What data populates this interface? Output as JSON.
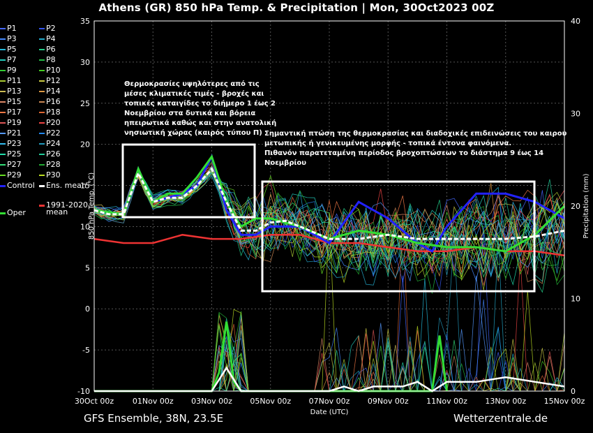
{
  "chart_data": {
    "type": "line",
    "title": "Athens  (GR)  850 hPa Temp. & Precipitation | Mon, 30Oct2023 00Z",
    "xlabel": "Date (UTC)",
    "ylabel": "850 hPa Temp. (°C)",
    "y2label": "Precipitation (mm)",
    "ylim": [
      -10,
      35
    ],
    "y2lim": [
      0,
      40
    ],
    "yticks": [
      "35",
      "30",
      "25",
      "20",
      "15",
      "10",
      "5",
      "0",
      "-5",
      "-10"
    ],
    "y2ticks": [
      "40",
      "30",
      "20",
      "10",
      "0"
    ],
    "xticks": [
      "30Oct 00z",
      "01Nov 00z",
      "03Nov 00z",
      "05Nov 00z",
      "07Nov 00z",
      "09Nov 00z",
      "11Nov 00z",
      "13Nov 00z",
      "15Nov 00z"
    ],
    "x_hours_range": [
      0,
      384
    ],
    "grid": true,
    "legend_position": "left",
    "series": [
      {
        "name": "Control",
        "color": "#2222ff",
        "values_hours": [
          0,
          24,
          36,
          48,
          60,
          72,
          84,
          96,
          108,
          120,
          132,
          144,
          168,
          192,
          216,
          240,
          264,
          276,
          288,
          312,
          336,
          360,
          384
        ],
        "values": [
          12,
          11.5,
          17,
          13,
          13.5,
          14,
          15,
          18.5,
          12,
          9,
          9,
          10,
          10,
          8,
          13,
          11,
          8,
          7,
          10,
          14,
          14,
          13,
          11
        ]
      },
      {
        "name": "Ens. mean",
        "color": "#ffffff",
        "values_hours": [
          0,
          12,
          24,
          36,
          48,
          60,
          72,
          84,
          96,
          108,
          120,
          132,
          144,
          156,
          168,
          192,
          216,
          240,
          264,
          288,
          312,
          336,
          360,
          384
        ],
        "values": [
          12,
          11.5,
          11.5,
          16.5,
          13,
          13.5,
          13.5,
          15,
          17,
          13,
          9.5,
          9.5,
          10.5,
          10.7,
          10,
          8.5,
          8.5,
          9,
          8.5,
          8.5,
          8.5,
          8.5,
          8.8,
          9.5
        ]
      },
      {
        "name": "Oper",
        "color": "#33dd33",
        "values_hours": [
          0,
          24,
          36,
          48,
          60,
          72,
          84,
          96,
          108,
          120,
          132,
          144,
          168,
          192,
          216,
          240,
          264,
          288,
          312,
          336,
          360,
          384
        ],
        "values": [
          12,
          11.5,
          17,
          13,
          14,
          14,
          16,
          18.5,
          13,
          10,
          11,
          11,
          10,
          8.5,
          9.5,
          9,
          8,
          7.5,
          7.5,
          7,
          9,
          12.5
        ]
      },
      {
        "name": "1991-2020 mean",
        "color": "#ee3333",
        "values_hours": [
          0,
          24,
          48,
          72,
          96,
          120,
          144,
          168,
          192,
          216,
          240,
          264,
          288,
          312,
          336,
          360,
          384
        ],
        "values": [
          8.5,
          8,
          8,
          9,
          8.5,
          8.5,
          9,
          9,
          8,
          8,
          7.5,
          7,
          7,
          7.5,
          7,
          7,
          6.5
        ]
      },
      {
        "name": "Oper precipitation",
        "color": "#33dd33",
        "axis": "precipitation",
        "values_hours": [
          0,
          96,
          102,
          108,
          114,
          120,
          276,
          282,
          288
        ],
        "values": [
          0,
          0,
          2,
          7.5,
          1,
          0,
          0,
          6,
          0
        ]
      },
      {
        "name": "Ens. mean precipitation",
        "color": "#ffffff",
        "axis": "precipitation",
        "values_hours": [
          0,
          96,
          108,
          120,
          192,
          204,
          216,
          228,
          252,
          264,
          276,
          288,
          312,
          336,
          384
        ],
        "values": [
          0,
          0,
          2.5,
          0,
          0,
          0.5,
          0,
          0.5,
          0.5,
          1,
          0,
          1,
          1,
          1.5,
          0.5
        ]
      }
    ],
    "annotations": [
      {
        "text_lines": [
          "Θερμοκρασίες υψηλότερες από τις",
          "μέσες κλιματικές τιμές - βροχές και",
          "τοπικές καταιγίδες το διήμερο 1 έως 2",
          "Νοεμβρίου στα δυτικά και βόρεια",
          "ηπειρωτικά καθώς και στην ανατολική",
          "νησιωτική χώρας (καιρός τύπου Π)"
        ]
      },
      {
        "text_lines": [
          "Σημαντική πτώση της θερμοκρασίας και διαδοχικές επιδεινώσεις του καιρου",
          "μετωπικής ή γενικευμένης μορφής - τοπικά έντονα φαινόμενα.",
          "Πιθανόν παρατεταμένη περίοδος βροχοπτώσεων το διάστημα 9 έως 14",
          "Νοεμβρίου"
        ]
      }
    ]
  },
  "legend": {
    "members": [
      {
        "label": "P1",
        "color": "#4466ff"
      },
      {
        "label": "P2",
        "color": "#3355ee"
      },
      {
        "label": "P3",
        "color": "#4488ff"
      },
      {
        "label": "P4",
        "color": "#22aacc"
      },
      {
        "label": "P5",
        "color": "#22bbdd"
      },
      {
        "label": "P6",
        "color": "#22cc88"
      },
      {
        "label": "P7",
        "color": "#22ccbb"
      },
      {
        "label": "P8",
        "color": "#22bb44"
      },
      {
        "label": "P9",
        "color": "#33cc33"
      },
      {
        "label": "P10",
        "color": "#44cc22"
      },
      {
        "label": "P11",
        "color": "#aacc33"
      },
      {
        "label": "P12",
        "color": "#cccc44"
      },
      {
        "label": "P13",
        "color": "#ccbb55"
      },
      {
        "label": "P14",
        "color": "#dd9944"
      },
      {
        "label": "P15",
        "color": "#dd8866"
      },
      {
        "label": "P16",
        "color": "#cc8855"
      },
      {
        "label": "P17",
        "color": "#ee7744"
      },
      {
        "label": "P18",
        "color": "#dd6633"
      },
      {
        "label": "P19",
        "color": "#dd5555"
      },
      {
        "label": "P20",
        "color": "#ee4444"
      },
      {
        "label": "P21",
        "color": "#5599ff"
      },
      {
        "label": "P22",
        "color": "#2288ee"
      },
      {
        "label": "P23",
        "color": "#33bbee"
      },
      {
        "label": "P24",
        "color": "#2299bb"
      },
      {
        "label": "P25",
        "color": "#22ddaa"
      },
      {
        "label": "P26",
        "color": "#22cc99"
      },
      {
        "label": "P27",
        "color": "#33dd77"
      },
      {
        "label": "P28",
        "color": "#22aa33"
      },
      {
        "label": "P29",
        "color": "#66dd22"
      },
      {
        "label": "P30",
        "color": "#bbdd22"
      }
    ],
    "control_label": "Control",
    "control_color": "#2222ff",
    "mean_label": "Ens. mean",
    "mean_color": "#ffffff",
    "climate_label_1": "1991-2020",
    "climate_label_2": "mean",
    "climate_color": "#ee3333",
    "oper_label": "Oper",
    "oper_color": "#33dd33"
  },
  "footer": {
    "left": "GFS Ensemble, 38N, 23.5E",
    "right": "Wetterzentrale.de"
  }
}
